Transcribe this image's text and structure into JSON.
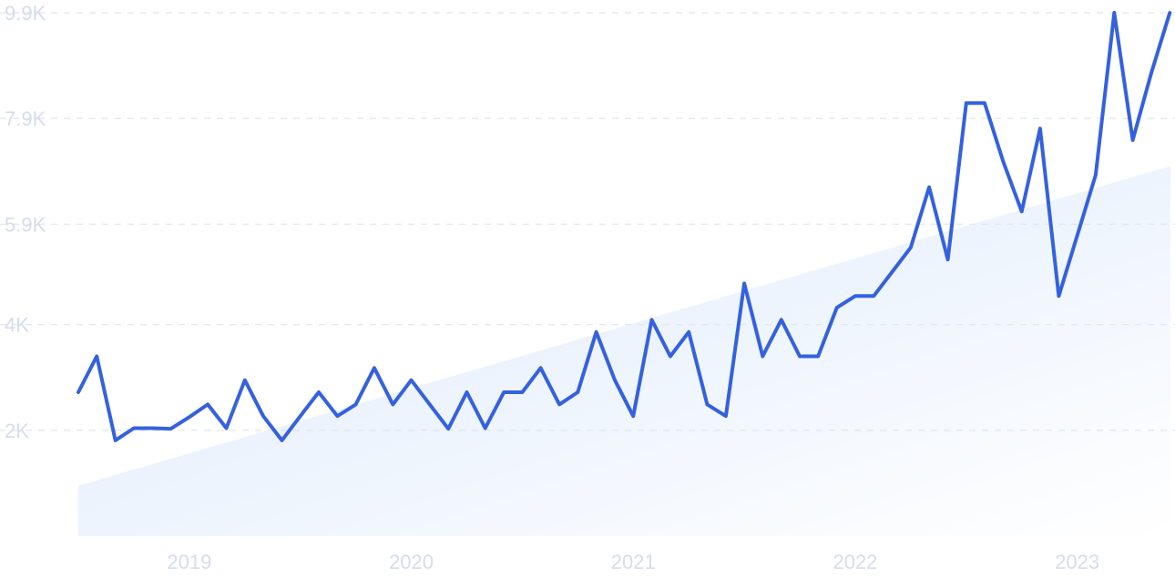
{
  "chart_data": {
    "type": "line",
    "title": "",
    "xlabel": "",
    "ylabel": "",
    "x_range": [
      2018.5,
      2023.42
    ],
    "ylim": [
      0,
      9900
    ],
    "grid": true,
    "x_tick_labels": [
      {
        "x": 2019,
        "label": "2019"
      },
      {
        "x": 2020,
        "label": "2020"
      },
      {
        "x": 2021,
        "label": "2021"
      },
      {
        "x": 2022,
        "label": "2022"
      },
      {
        "x": 2023,
        "label": "2023"
      }
    ],
    "y_tick_labels": [
      {
        "y": 2000,
        "label": "2K"
      },
      {
        "y": 4000,
        "label": "4K"
      },
      {
        "y": 5900,
        "label": "5.9K"
      },
      {
        "y": 7900,
        "label": "7.9K"
      },
      {
        "y": 9900,
        "label": "9.9K"
      }
    ],
    "series": [
      {
        "type": "line",
        "color": "#3461e0",
        "x": [
          2018.5,
          2018.583,
          2018.667,
          2018.75,
          2018.833,
          2018.917,
          2019.0,
          2019.083,
          2019.167,
          2019.25,
          2019.333,
          2019.417,
          2019.5,
          2019.583,
          2019.667,
          2019.75,
          2019.833,
          2019.917,
          2020.0,
          2020.083,
          2020.167,
          2020.25,
          2020.333,
          2020.417,
          2020.5,
          2020.583,
          2020.667,
          2020.75,
          2020.833,
          2020.917,
          2021.0,
          2021.083,
          2021.167,
          2021.25,
          2021.333,
          2021.417,
          2021.5,
          2021.583,
          2021.667,
          2021.75,
          2021.833,
          2021.917,
          2022.0,
          2022.083,
          2022.167,
          2022.25,
          2022.333,
          2022.417,
          2022.5,
          2022.583,
          2022.667,
          2022.75,
          2022.833,
          2022.917,
          2023.0,
          2023.083,
          2023.167,
          2023.25,
          2023.333,
          2023.417
        ],
        "y": [
          2720,
          3400,
          1810,
          2040,
          2040,
          2030,
          2250,
          2490,
          2040,
          2950,
          2270,
          1810,
          2270,
          2720,
          2270,
          2490,
          3180,
          2490,
          2950,
          2490,
          2030,
          2720,
          2040,
          2720,
          2720,
          3180,
          2490,
          2720,
          3860,
          2950,
          2270,
          4090,
          3400,
          3860,
          2490,
          2270,
          4780,
          3400,
          4090,
          3400,
          3400,
          4320,
          4540,
          4540,
          5000,
          5460,
          6600,
          5230,
          8190,
          8190,
          7080,
          6140,
          7710,
          4540,
          5680,
          6830,
          9900,
          7490,
          8750,
          9900
        ]
      },
      {
        "type": "area",
        "name": "",
        "x": [
          2018.5,
          2023.42
        ],
        "y": [
          950,
          7000
        ]
      }
    ]
  }
}
